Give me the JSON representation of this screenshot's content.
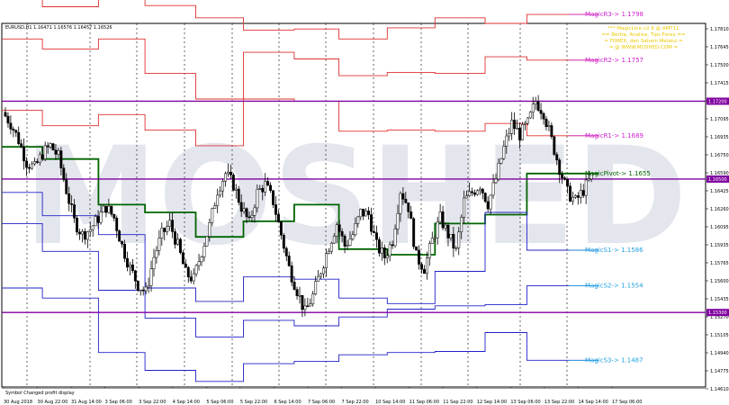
{
  "chart": {
    "symbol_info": "EURUSD,H1  1.16471 1.16576 1.16457 1.16526",
    "watermark": "MOSHED",
    "info_lines": [
      "*** MagicLine v2.9 @ AMT11",
      "== Berita, Analisa, Tips Forex ==",
      "= FOREX, dan Saham Melalui =",
      "= @ WWW.MOSHED.COM ="
    ],
    "status_text": "Symbol Changed profit display",
    "colors": {
      "resistance": "#e03030",
      "support": "#2020c8",
      "pivot": "#006400",
      "magenta": "#d020d0",
      "cyan": "#20a0e0",
      "purple_line": "#8000a0",
      "candle": "#000000"
    },
    "price_ticks": [
      "1.17810",
      "1.17645",
      "1.17500",
      "1.17415",
      "1.17255",
      "1.17095",
      "1.16935",
      "1.16750",
      "1.16590",
      "1.16425",
      "1.16260",
      "1.16095",
      "1.15935",
      "1.15765",
      "1.15600",
      "1.15435",
      "1.15270",
      "1.15105",
      "1.14940",
      "1.14775",
      "1.14610"
    ],
    "price_markers": [
      {
        "label": "1.17200",
        "price": 1.172,
        "color": "#8000a0"
      },
      {
        "label": "1.16500",
        "price": 1.165,
        "color": "#8000a0"
      },
      {
        "label": "1.15300",
        "price": 1.153,
        "color": "#8000a0"
      }
    ],
    "time_ticks": [
      "30 Aug 2018",
      "30 Aug 22:00",
      "31 Aug 14:00",
      "3 Sep 06:00",
      "3 Sep 22:00",
      "4 Sep 14:00",
      "5 Sep 06:00",
      "5 Sep 22:00",
      "6 Sep 14:00",
      "7 Sep 06:00",
      "7 Sep 22:00",
      "10 Sep 14:00",
      "11 Sep 06:00",
      "11 Sep 22:00",
      "12 Sep 14:00",
      "13 Sep 06:00",
      "13 Sep 22:00",
      "14 Sep 14:00",
      "17 Sep 06:00"
    ],
    "magic_labels": [
      {
        "text": "MagicR3-> 1.1798",
        "price": 1.1798,
        "color": "#d020d0"
      },
      {
        "text": "MagicR2-> 1.1757",
        "price": 1.1757,
        "color": "#d020d0"
      },
      {
        "text": "MagicR1-> 1.1689",
        "price": 1.1689,
        "color": "#d020d0"
      },
      {
        "text": "MagicPivot-> 1.1655",
        "price": 1.1655,
        "color": "#006400"
      },
      {
        "text": "MagicS1-> 1.1586",
        "price": 1.1586,
        "color": "#20a0e0"
      },
      {
        "text": "MagicS2-> 1.1554",
        "price": 1.1554,
        "color": "#20a0e0"
      },
      {
        "text": "MagicS3-> 1.1487",
        "price": 1.1487,
        "color": "#20a0e0"
      }
    ],
    "level_steps": {
      "boundaries": [
        0,
        0.068,
        0.162,
        0.24,
        0.325,
        0.405,
        0.49,
        0.565,
        0.646,
        0.726,
        0.81,
        0.88,
        1.0
      ],
      "R3": [
        1.1812,
        1.1805,
        1.1812,
        1.1806,
        1.1795,
        1.1784,
        1.1785,
        1.1776,
        1.1786,
        1.1795,
        1.179,
        1.1798
      ],
      "R2": [
        1.1776,
        1.1767,
        1.1776,
        1.1745,
        1.1722,
        1.1764,
        1.1758,
        1.1743,
        1.1746,
        1.1745,
        1.176,
        1.1757
      ],
      "R1": [
        1.1712,
        1.1698,
        1.1708,
        1.1694,
        1.168,
        1.1722,
        1.172,
        1.1693,
        1.1694,
        1.1693,
        1.17,
        1.1689
      ],
      "P": [
        1.1679,
        1.1668,
        1.1627,
        1.162,
        1.1598,
        1.1612,
        1.1627,
        1.1587,
        1.1582,
        1.161,
        1.1618,
        1.1655
      ],
      "S1": [
        1.1638,
        1.1617,
        1.16,
        1.1552,
        1.154,
        1.1562,
        1.156,
        1.1543,
        1.1538,
        1.1567,
        1.162,
        1.1586
      ],
      "S2": [
        1.161,
        1.1585,
        1.155,
        1.1525,
        1.1508,
        1.1523,
        1.1518,
        1.1526,
        1.1533,
        1.1536,
        1.1537,
        1.1554
      ],
      "S3": [
        1.1552,
        1.1543,
        1.1494,
        1.1478,
        1.1468,
        1.1484,
        1.1486,
        1.1492,
        1.1494,
        1.1495,
        1.1512,
        1.1487
      ]
    },
    "price_path": [
      1.171,
      1.17,
      1.1685,
      1.1665,
      1.166,
      1.1673,
      1.168,
      1.167,
      1.164,
      1.1612,
      1.16,
      1.1605,
      1.1615,
      1.1625,
      1.1615,
      1.159,
      1.157,
      1.1555,
      1.1548,
      1.158,
      1.16,
      1.161,
      1.159,
      1.1565,
      1.156,
      1.1585,
      1.1608,
      1.164,
      1.1655,
      1.1645,
      1.1625,
      1.161,
      1.1638,
      1.1645,
      1.163,
      1.16,
      1.157,
      1.155,
      1.153,
      1.1545,
      1.1568,
      1.159,
      1.161,
      1.159,
      1.16,
      1.162,
      1.1618,
      1.159,
      1.158,
      1.1595,
      1.164,
      1.1625,
      1.158,
      1.157,
      1.1595,
      1.1615,
      1.16,
      1.1585,
      1.163,
      1.1638,
      1.1645,
      1.1628,
      1.165,
      1.1678,
      1.17,
      1.169,
      1.17,
      1.172,
      1.171,
      1.1685,
      1.166,
      1.1638,
      1.163,
      1.164,
      1.1652
    ]
  }
}
